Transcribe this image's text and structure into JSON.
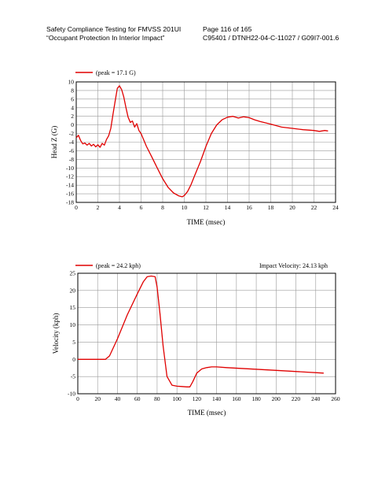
{
  "header": {
    "title_line1": "Safety Compliance Testing for FMVSS 201UI",
    "title_line2": "“Occupant Protection In Interior Impact”",
    "page": "Page 116 of 165",
    "report_id": "C95401 / DTNH22-04-C-11027 / G09I7-001.6"
  },
  "colors": {
    "trace": "#e00000",
    "grid": "#9a9a9a"
  },
  "chart_data": [
    {
      "type": "line",
      "title": "",
      "legend": "(peak = 17.1 G)",
      "annotation": "",
      "xlabel": "TIME (msec)",
      "ylabel": "Head Z (G)",
      "xlim": [
        0,
        24
      ],
      "ylim": [
        -18,
        10
      ],
      "xticks": [
        "0",
        "2",
        "4",
        "6",
        "8",
        "10",
        "12",
        "14",
        "16",
        "18",
        "20",
        "22",
        "24"
      ],
      "yticks": [
        "10",
        "8",
        "6",
        "4",
        "2",
        "0",
        "-2",
        "-4",
        "-6",
        "-8",
        "-10",
        "-12",
        "-14",
        "-16",
        "-18"
      ],
      "grid": true,
      "series": [
        {
          "name": "(peak = 17.1 G)",
          "x": [
            0,
            0.2,
            0.4,
            0.6,
            0.8,
            1.0,
            1.2,
            1.4,
            1.6,
            1.8,
            2.0,
            2.2,
            2.4,
            2.6,
            2.8,
            3.0,
            3.2,
            3.4,
            3.6,
            3.8,
            4.0,
            4.2,
            4.4,
            4.6,
            4.8,
            5.0,
            5.2,
            5.4,
            5.6,
            5.8,
            6.0,
            6.5,
            7.0,
            7.5,
            8.0,
            8.5,
            9.0,
            9.5,
            9.8,
            10.0,
            10.3,
            10.6,
            11.0,
            11.5,
            12.0,
            12.5,
            13.0,
            13.5,
            14.0,
            14.5,
            15.0,
            15.5,
            16.0,
            16.5,
            17.0,
            18.0,
            19.0,
            20.0,
            21.0,
            22.0,
            22.5,
            23.0,
            23.3
          ],
          "y": [
            -3,
            -2.4,
            -3.6,
            -4.4,
            -4.2,
            -4.7,
            -4.3,
            -4.9,
            -4.5,
            -5.1,
            -4.6,
            -5.2,
            -4.3,
            -4.7,
            -3.4,
            -2.5,
            -0.8,
            2.5,
            5.5,
            8.5,
            9.1,
            8.2,
            6.5,
            4.0,
            1.8,
            0.6,
            0.9,
            -0.5,
            0.3,
            -1.3,
            -2.0,
            -5.0,
            -7.5,
            -10.0,
            -12.5,
            -14.5,
            -15.8,
            -16.5,
            -16.7,
            -16.4,
            -15.5,
            -14.0,
            -11.5,
            -8.5,
            -5.0,
            -2.0,
            0.0,
            1.2,
            1.8,
            2.0,
            1.6,
            1.9,
            1.7,
            1.2,
            0.8,
            0.2,
            -0.5,
            -0.8,
            -1.1,
            -1.3,
            -1.5,
            -1.3,
            -1.4
          ]
        }
      ]
    },
    {
      "type": "line",
      "title": "",
      "legend": "(peak = 24.2 kph)",
      "annotation": "Impact Velocity: 24.13 kph",
      "xlabel": "TIME (msec)",
      "ylabel": "Velocity (kph)",
      "xlim": [
        0,
        260
      ],
      "ylim": [
        -10,
        25
      ],
      "xticks": [
        "0",
        "20",
        "40",
        "60",
        "80",
        "100",
        "120",
        "140",
        "160",
        "180",
        "200",
        "220",
        "240",
        "260"
      ],
      "yticks": [
        "25",
        "20",
        "15",
        "10",
        "5",
        "0",
        "-5",
        "-10"
      ],
      "grid": true,
      "series": [
        {
          "name": "(peak = 24.2 kph)",
          "x": [
            0,
            20,
            28,
            32,
            40,
            50,
            60,
            66,
            70,
            74,
            78,
            80,
            83,
            86,
            90,
            95,
            100,
            105,
            110,
            113,
            116,
            120,
            125,
            130,
            135,
            140,
            150,
            200,
            230,
            248
          ],
          "y": [
            0,
            0,
            0,
            1,
            6,
            13,
            19,
            22.5,
            24,
            24.2,
            24,
            21,
            13,
            4,
            -5,
            -7.5,
            -7.8,
            -7.9,
            -8.0,
            -8.0,
            -6.5,
            -4,
            -2.8,
            -2.4,
            -2.2,
            -2.2,
            -2.4,
            -3.2,
            -3.7,
            -4.0
          ]
        }
      ]
    }
  ]
}
